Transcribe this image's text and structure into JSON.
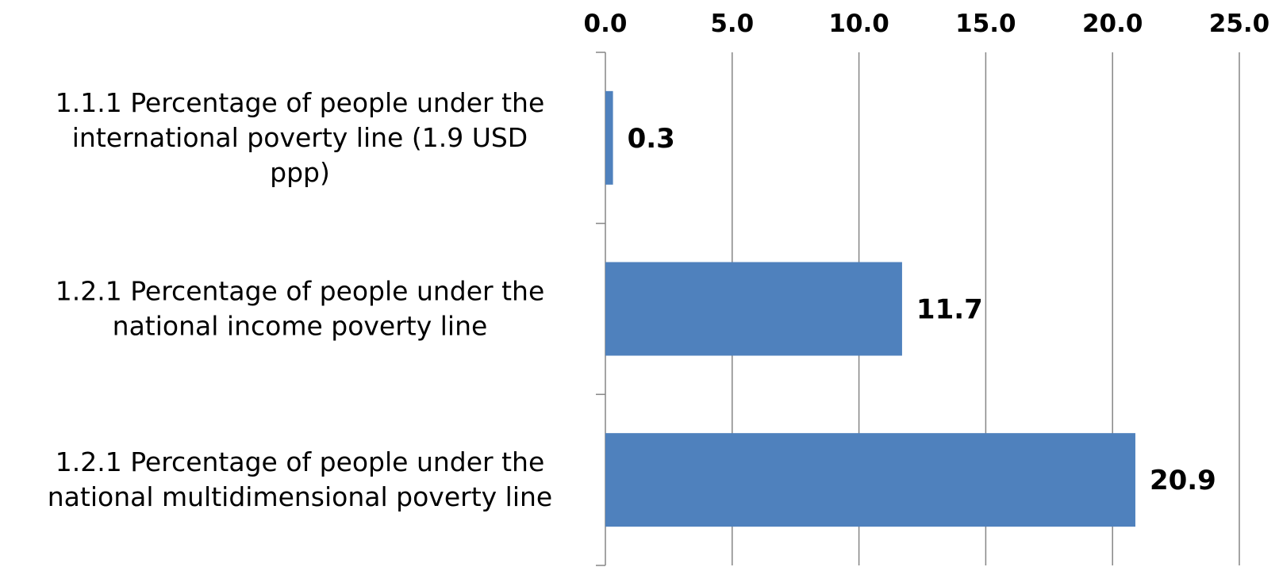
{
  "chart_data": {
    "type": "bar",
    "orientation": "horizontal",
    "categories": [
      "1.1.1 Percentage of people under the international poverty line (1.9 USD ppp)",
      "1.2.1 Percentage of people under the national income poverty line",
      "1.2.1 Percentage of people under the national multidimensional poverty line"
    ],
    "category_lines": [
      [
        "1.1.1 Percentage of people under the",
        "international poverty line (1.9 USD",
        "ppp)"
      ],
      [
        "1.2.1 Percentage of people under the",
        "national income poverty line"
      ],
      [
        "1.2.1 Percentage of people under the",
        "national multidimensional poverty line"
      ]
    ],
    "values": [
      0.3,
      11.7,
      20.9
    ],
    "data_labels": [
      "0.3",
      "11.7",
      "20.9"
    ],
    "xlim": [
      0,
      25
    ],
    "x_ticks": [
      0,
      5,
      10,
      15,
      20,
      25
    ],
    "x_tick_labels": [
      "0.0",
      "5.0",
      "10.0",
      "15.0",
      "20.0",
      "25.0"
    ],
    "x_axis_position": "top",
    "grid": true,
    "legend": "none",
    "colors": {
      "bar": "#4F81BD",
      "grid": "#868686",
      "text": "#000000"
    }
  }
}
